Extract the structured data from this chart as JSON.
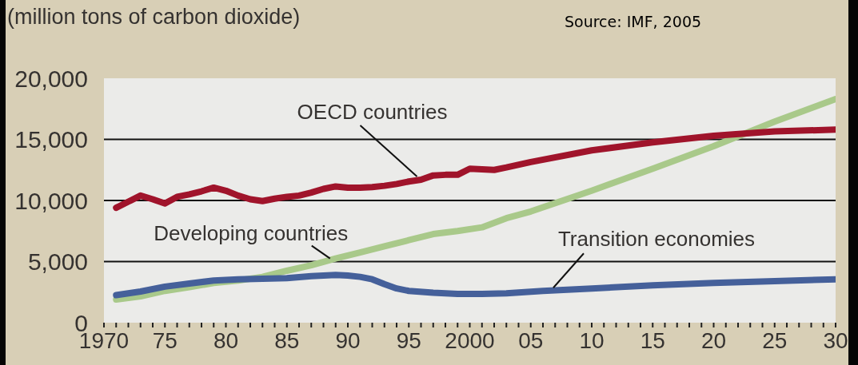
{
  "chart_data": {
    "type": "line",
    "ylabel": "(million tons of carbon dioxide)",
    "annotations": [
      "Source: IMF, 2005"
    ],
    "xlim": [
      1970,
      2030
    ],
    "xticks": [
      {
        "value": 1970,
        "label": "1970"
      },
      {
        "value": 1971,
        "label": null
      },
      {
        "value": 1972,
        "label": null
      },
      {
        "value": 1973,
        "label": null
      },
      {
        "value": 1974,
        "label": null
      },
      {
        "value": 1975,
        "label": "75"
      },
      {
        "value": 1976,
        "label": null
      },
      {
        "value": 1977,
        "label": null
      },
      {
        "value": 1978,
        "label": null
      },
      {
        "value": 1979,
        "label": null
      },
      {
        "value": 1980,
        "label": "80"
      },
      {
        "value": 1981,
        "label": null
      },
      {
        "value": 1982,
        "label": null
      },
      {
        "value": 1983,
        "label": null
      },
      {
        "value": 1984,
        "label": null
      },
      {
        "value": 1985,
        "label": "85"
      },
      {
        "value": 1986,
        "label": null
      },
      {
        "value": 1987,
        "label": null
      },
      {
        "value": 1988,
        "label": null
      },
      {
        "value": 1989,
        "label": null
      },
      {
        "value": 1990,
        "label": "90"
      },
      {
        "value": 1991,
        "label": null
      },
      {
        "value": 1992,
        "label": null
      },
      {
        "value": 1993,
        "label": null
      },
      {
        "value": 1994,
        "label": null
      },
      {
        "value": 1995,
        "label": "95"
      },
      {
        "value": 1996,
        "label": null
      },
      {
        "value": 1997,
        "label": null
      },
      {
        "value": 1998,
        "label": null
      },
      {
        "value": 1999,
        "label": null
      },
      {
        "value": 2000,
        "label": "2000"
      },
      {
        "value": 2001,
        "label": null
      },
      {
        "value": 2002,
        "label": null
      },
      {
        "value": 2003,
        "label": null
      },
      {
        "value": 2004,
        "label": null
      },
      {
        "value": 2005,
        "label": "05"
      },
      {
        "value": 2006,
        "label": null
      },
      {
        "value": 2007,
        "label": null
      },
      {
        "value": 2008,
        "label": null
      },
      {
        "value": 2009,
        "label": null
      },
      {
        "value": 2010,
        "label": "10"
      },
      {
        "value": 2011,
        "label": null
      },
      {
        "value": 2012,
        "label": null
      },
      {
        "value": 2013,
        "label": null
      },
      {
        "value": 2014,
        "label": null
      },
      {
        "value": 2015,
        "label": "15"
      },
      {
        "value": 2016,
        "label": null
      },
      {
        "value": 2017,
        "label": null
      },
      {
        "value": 2018,
        "label": null
      },
      {
        "value": 2019,
        "label": null
      },
      {
        "value": 2020,
        "label": "20"
      },
      {
        "value": 2021,
        "label": null
      },
      {
        "value": 2022,
        "label": null
      },
      {
        "value": 2023,
        "label": null
      },
      {
        "value": 2024,
        "label": null
      },
      {
        "value": 2025,
        "label": "25"
      },
      {
        "value": 2026,
        "label": null
      },
      {
        "value": 2027,
        "label": null
      },
      {
        "value": 2028,
        "label": null
      },
      {
        "value": 2029,
        "label": null
      },
      {
        "value": 2030,
        "label": "30"
      }
    ],
    "ylim": [
      0,
      20000
    ],
    "yticks": [
      {
        "value": 0,
        "label": "0"
      },
      {
        "value": 5000,
        "label": "5,000"
      },
      {
        "value": 10000,
        "label": "10,000"
      },
      {
        "value": 15000,
        "label": "15,000"
      },
      {
        "value": 20000,
        "label": "20,000"
      }
    ],
    "grid": "y",
    "series": [
      {
        "name": "OECD countries",
        "color": "#a0142b",
        "x": [
          1971,
          1972,
          1973,
          1974,
          1975,
          1976,
          1977,
          1978,
          1979,
          1980,
          1981,
          1982,
          1983,
          1984,
          1985,
          1986,
          1987,
          1988,
          1989,
          1990,
          1991,
          1992,
          1993,
          1994,
          1995,
          1996,
          1997,
          1998,
          1999,
          2000,
          2001,
          2002,
          2003,
          2005,
          2010,
          2015,
          2020,
          2025,
          2030
        ],
        "values": [
          9400,
          9900,
          10400,
          10100,
          9750,
          10300,
          10500,
          10750,
          11050,
          10800,
          10400,
          10100,
          9950,
          10150,
          10300,
          10400,
          10650,
          10950,
          11150,
          11050,
          11050,
          11100,
          11200,
          11350,
          11550,
          11700,
          12050,
          12100,
          12100,
          12600,
          12550,
          12500,
          12700,
          13150,
          14100,
          14750,
          15300,
          15650,
          15800
        ]
      },
      {
        "name": "Developing countries",
        "color": "#a9c98a",
        "x": [
          1971,
          1973,
          1975,
          1977,
          1979,
          1981,
          1983,
          1985,
          1987,
          1989,
          1991,
          1993,
          1995,
          1996,
          1997,
          1999,
          2001,
          2003,
          2005,
          2010,
          2015,
          2020,
          2025,
          2030
        ],
        "values": [
          1900,
          2150,
          2600,
          2900,
          3250,
          3450,
          3750,
          4250,
          4700,
          5250,
          5750,
          6250,
          6750,
          7000,
          7250,
          7500,
          7800,
          8550,
          9100,
          10800,
          12600,
          14450,
          16450,
          18300
        ]
      },
      {
        "name": "Transition economies",
        "color": "#45609a",
        "x": [
          1971,
          1973,
          1975,
          1977,
          1979,
          1981,
          1983,
          1985,
          1987,
          1989,
          1990,
          1991,
          1992,
          1993,
          1994,
          1995,
          1997,
          1999,
          2001,
          2003,
          2006,
          2010,
          2015,
          2020,
          2025,
          2030
        ],
        "values": [
          2250,
          2550,
          2950,
          3200,
          3450,
          3550,
          3600,
          3650,
          3800,
          3900,
          3850,
          3750,
          3550,
          3150,
          2800,
          2600,
          2450,
          2350,
          2350,
          2400,
          2600,
          2800,
          3050,
          3250,
          3400,
          3550
        ]
      }
    ]
  }
}
